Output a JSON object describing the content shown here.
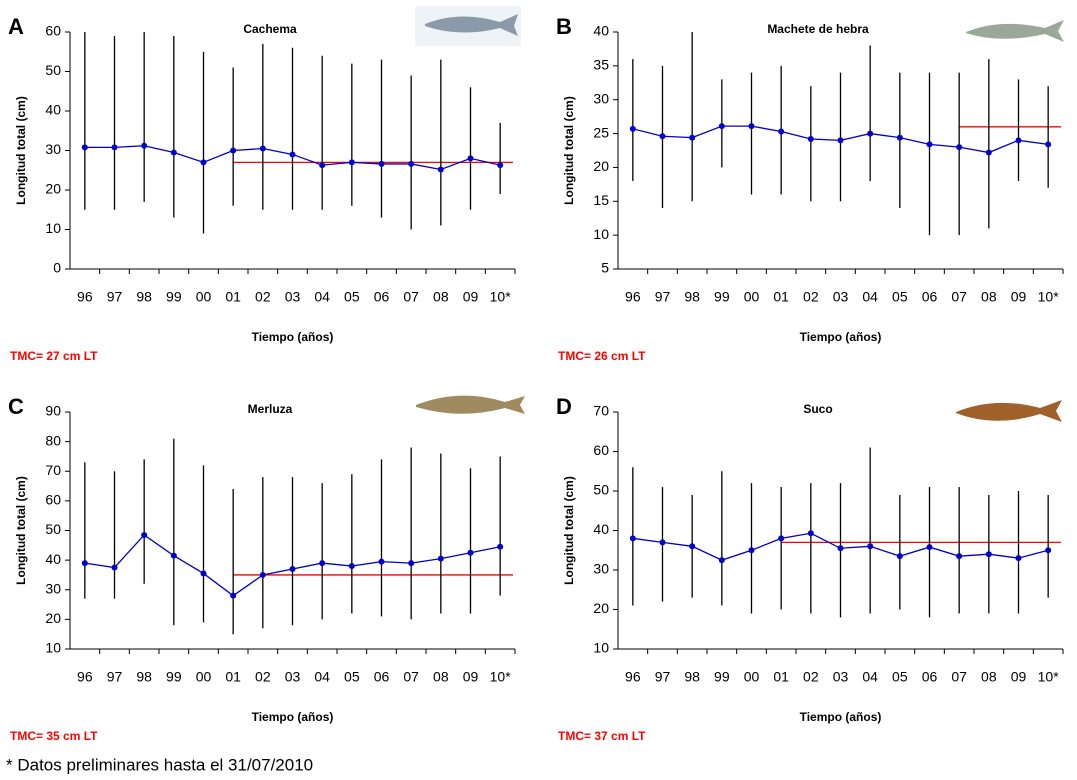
{
  "chart_data": [
    {
      "type": "line",
      "panel": "A",
      "title": "Cachema",
      "xlabel": "Tiempo (años)",
      "ylabel": "Longitud total (cm)",
      "categories": [
        "96",
        "97",
        "98",
        "99",
        "00",
        "01",
        "02",
        "03",
        "04",
        "05",
        "06",
        "07",
        "08",
        "09",
        "10*"
      ],
      "series": [
        {
          "color": "#0000cc",
          "errorbar_color": "#000000",
          "values": [
            30.8,
            30.8,
            31.2,
            29.5,
            27,
            30,
            30.5,
            29,
            26.3,
            27,
            26.6,
            26.6,
            25.2,
            28,
            26.3
          ],
          "low": [
            15,
            15,
            17,
            13,
            9,
            16,
            15,
            15,
            15,
            16,
            13,
            10,
            11,
            15,
            19
          ],
          "high": [
            60,
            59,
            60,
            59,
            55,
            51,
            57,
            56,
            54,
            52,
            53,
            49,
            53,
            46,
            37
          ]
        }
      ],
      "ylim": [
        0,
        60
      ],
      "yticks": [
        0,
        10,
        20,
        30,
        40,
        50,
        60
      ],
      "reference_line": {
        "value": 27,
        "label": "TMC= 27 cm LT",
        "from": "01",
        "color": "#ff0000"
      }
    },
    {
      "type": "line",
      "panel": "B",
      "title": "Machete de hebra",
      "xlabel": "Tiempo (años)",
      "ylabel": "Longitud total (cm)",
      "categories": [
        "96",
        "97",
        "98",
        "99",
        "00",
        "01",
        "02",
        "03",
        "04",
        "05",
        "06",
        "07",
        "08",
        "09",
        "10*"
      ],
      "series": [
        {
          "color": "#0000cc",
          "errorbar_color": "#000000",
          "values": [
            25.7,
            24.6,
            24.4,
            26.1,
            26.1,
            25.3,
            24.2,
            24,
            25,
            24.4,
            23.4,
            23,
            22.2,
            24,
            23.4
          ],
          "low": [
            18,
            14,
            15,
            20,
            16,
            16,
            15,
            15,
            18,
            14,
            10,
            10,
            11,
            18,
            17
          ],
          "high": [
            36,
            35,
            40,
            33,
            34,
            35,
            32,
            34,
            38,
            34,
            34,
            34,
            36,
            33,
            32
          ]
        }
      ],
      "ylim": [
        5,
        40
      ],
      "yticks": [
        5,
        10,
        15,
        20,
        25,
        30,
        35,
        40
      ],
      "reference_line": {
        "value": 26,
        "label": "TMC= 26 cm LT",
        "from": "07",
        "color": "#ff0000"
      }
    },
    {
      "type": "line",
      "panel": "C",
      "title": "Merluza",
      "xlabel": "Tiempo (años)",
      "ylabel": "Longitud total (cm)",
      "categories": [
        "96",
        "97",
        "98",
        "99",
        "00",
        "01",
        "02",
        "03",
        "04",
        "05",
        "06",
        "07",
        "08",
        "09",
        "10*"
      ],
      "series": [
        {
          "color": "#0000cc",
          "errorbar_color": "#000000",
          "values": [
            39,
            37.5,
            48.5,
            41.5,
            35.5,
            28,
            35,
            37,
            39,
            38,
            39.5,
            39,
            40.5,
            42.5,
            44.5
          ],
          "low": [
            27,
            27,
            32,
            18,
            19,
            15,
            17,
            18,
            20,
            22,
            21,
            20,
            22,
            22,
            28
          ],
          "high": [
            73,
            70,
            74,
            81,
            72,
            64,
            68,
            68,
            66,
            69,
            74,
            78,
            76,
            71,
            75
          ]
        }
      ],
      "ylim": [
        10,
        90
      ],
      "yticks": [
        10,
        20,
        30,
        40,
        50,
        60,
        70,
        80,
        90
      ],
      "reference_line": {
        "value": 35,
        "label": "TMC= 35 cm LT",
        "from": "01",
        "color": "#ff0000"
      }
    },
    {
      "type": "line",
      "panel": "D",
      "title": "Suco",
      "xlabel": "Tiempo (años)",
      "ylabel": "Longitud total (cm)",
      "categories": [
        "96",
        "97",
        "98",
        "99",
        "00",
        "01",
        "02",
        "03",
        "04",
        "05",
        "06",
        "07",
        "08",
        "09",
        "10*"
      ],
      "series": [
        {
          "color": "#0000cc",
          "errorbar_color": "#000000",
          "values": [
            38,
            37,
            36,
            32.5,
            35,
            38,
            39.3,
            35.5,
            36,
            33.5,
            35.8,
            33.5,
            34,
            33,
            35
          ],
          "low": [
            21,
            22,
            23,
            21,
            19,
            20,
            19,
            18,
            19,
            20,
            18,
            19,
            19,
            19,
            23
          ],
          "high": [
            56,
            51,
            49,
            55,
            52,
            51,
            52,
            52,
            61,
            49,
            51,
            51,
            49,
            50,
            49
          ]
        }
      ],
      "ylim": [
        10,
        70
      ],
      "yticks": [
        10,
        20,
        30,
        40,
        50,
        60,
        70
      ],
      "reference_line": {
        "value": 37,
        "label": "TMC= 37 cm LT",
        "from": "01",
        "color": "#ff0000"
      }
    }
  ],
  "footnote": "* Datos preliminares hasta el 31/07/2010"
}
